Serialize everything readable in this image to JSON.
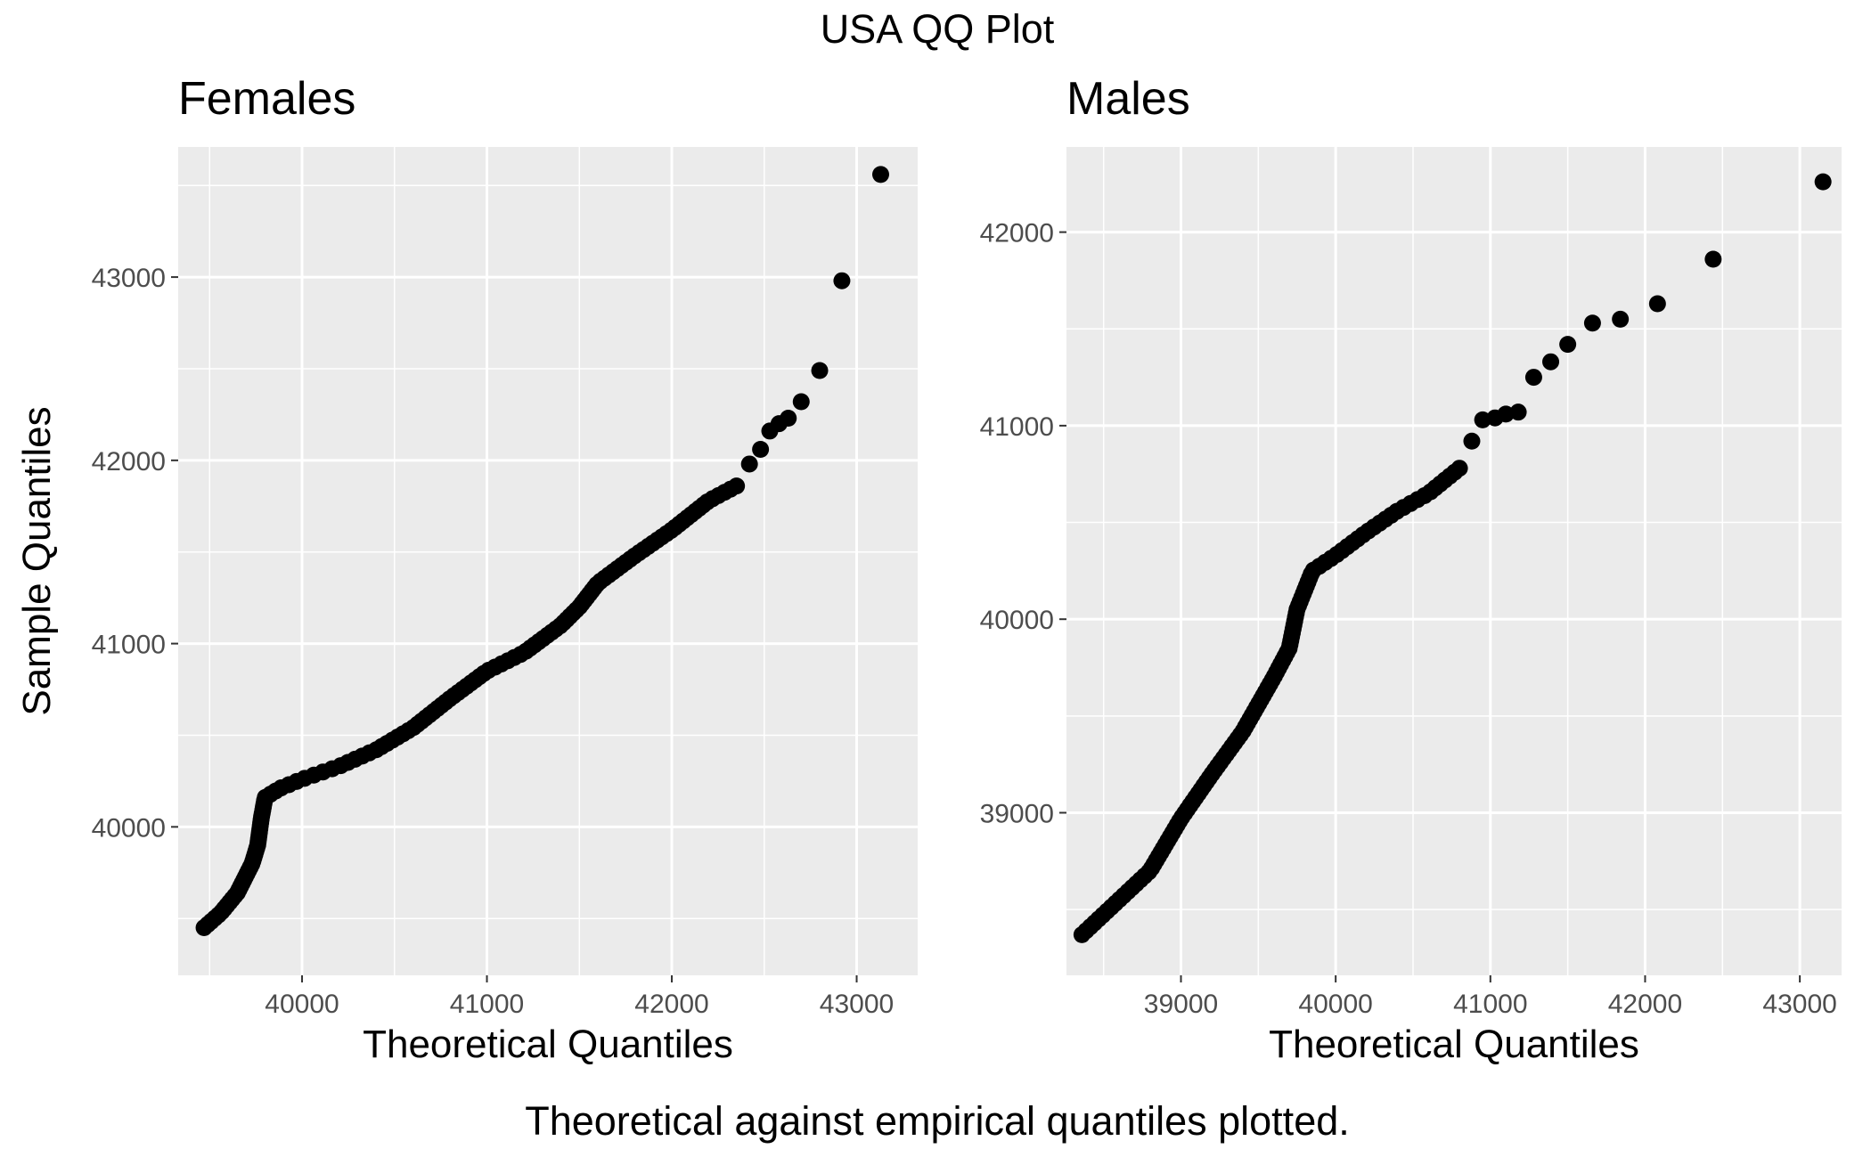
{
  "figure": {
    "title": "USA QQ Plot",
    "caption": "Theoretical against empirical quantiles plotted."
  },
  "chart_data": [
    {
      "type": "scatter",
      "title": "Females",
      "xlabel": "Theoretical Quantiles",
      "ylabel": "Sample Quantiles",
      "xlim": [
        39330,
        43330
      ],
      "ylim": [
        39190,
        43710
      ],
      "xticks": [
        40000,
        41000,
        42000,
        43000
      ],
      "yticks": [
        40000,
        41000,
        42000,
        43000
      ],
      "grid": true,
      "point_color": "#000000",
      "panel_color": "#EBEBEB",
      "anchors": [
        [
          39470,
          39450
        ],
        [
          39560,
          39530
        ],
        [
          39650,
          39640
        ],
        [
          39730,
          39800
        ],
        [
          39760,
          39900
        ],
        [
          39780,
          40050
        ],
        [
          39800,
          40160
        ],
        [
          39880,
          40210
        ],
        [
          40000,
          40260
        ],
        [
          40200,
          40330
        ],
        [
          40400,
          40420
        ],
        [
          40600,
          40540
        ],
        [
          40800,
          40700
        ],
        [
          41000,
          40850
        ],
        [
          41200,
          40950
        ],
        [
          41400,
          41100
        ],
        [
          41500,
          41200
        ],
        [
          41600,
          41330
        ],
        [
          41800,
          41480
        ],
        [
          42000,
          41620
        ],
        [
          42200,
          41780
        ],
        [
          42350,
          41860
        ]
      ],
      "n_dense": 140,
      "tail": [
        [
          42420,
          41980
        ],
        [
          42480,
          42060
        ],
        [
          42530,
          42160
        ],
        [
          42580,
          42200
        ],
        [
          42630,
          42230
        ],
        [
          42700,
          42320
        ],
        [
          42800,
          42490
        ],
        [
          42920,
          42980
        ],
        [
          43130,
          43560
        ]
      ]
    },
    {
      "type": "scatter",
      "title": "Males",
      "xlabel": "Theoretical Quantiles",
      "ylabel": "",
      "xlim": [
        38260,
        43270
      ],
      "ylim": [
        38160,
        42440
      ],
      "xticks": [
        39000,
        40000,
        41000,
        42000,
        43000
      ],
      "yticks": [
        39000,
        40000,
        41000,
        42000
      ],
      "grid": true,
      "point_color": "#000000",
      "panel_color": "#EBEBEB",
      "anchors": [
        [
          38360,
          38370
        ],
        [
          38600,
          38550
        ],
        [
          38800,
          38700
        ],
        [
          39000,
          38970
        ],
        [
          39200,
          39200
        ],
        [
          39400,
          39420
        ],
        [
          39600,
          39700
        ],
        [
          39700,
          39850
        ],
        [
          39750,
          40050
        ],
        [
          39850,
          40250
        ],
        [
          40000,
          40330
        ],
        [
          40200,
          40450
        ],
        [
          40400,
          40560
        ],
        [
          40600,
          40650
        ],
        [
          40800,
          40780
        ]
      ],
      "n_dense": 120,
      "tail": [
        [
          40880,
          40920
        ],
        [
          40950,
          41030
        ],
        [
          41030,
          41040
        ],
        [
          41100,
          41060
        ],
        [
          41180,
          41070
        ],
        [
          41280,
          41250
        ],
        [
          41390,
          41330
        ],
        [
          41500,
          41420
        ],
        [
          41660,
          41530
        ],
        [
          41840,
          41550
        ],
        [
          42080,
          41630
        ],
        [
          42440,
          41860
        ],
        [
          43150,
          42260
        ]
      ]
    }
  ]
}
